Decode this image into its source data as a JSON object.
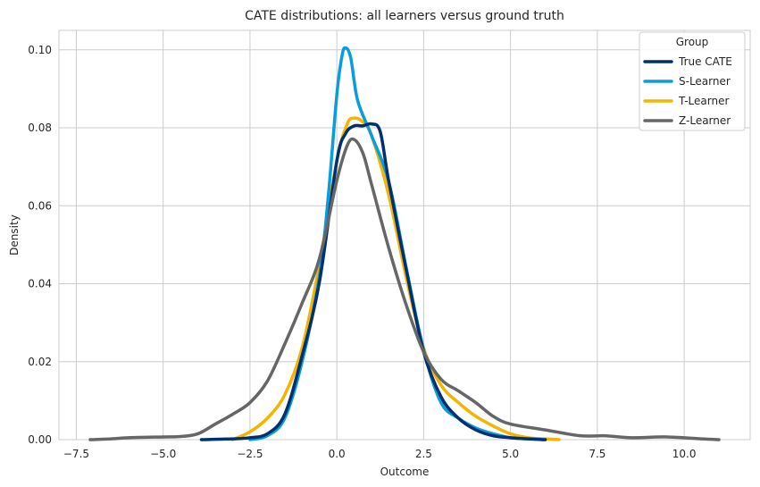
{
  "chart_data": {
    "type": "line",
    "title": "CATE distributions: all learners versus ground truth",
    "xlabel": "Outcome",
    "ylabel": "Density",
    "xlim": [
      -8.0,
      11.9
    ],
    "ylim": [
      0,
      0.105
    ],
    "xticks": [
      -7.5,
      -5.0,
      -2.5,
      0.0,
      2.5,
      5.0,
      7.5,
      10.0
    ],
    "xtick_labels": [
      "−7.5",
      "−5.0",
      "−2.5",
      "0.0",
      "2.5",
      "5.0",
      "7.5",
      "10.0"
    ],
    "yticks": [
      0.0,
      0.02,
      0.04,
      0.06,
      0.08,
      0.1
    ],
    "ytick_labels": [
      "0.00",
      "0.02",
      "0.04",
      "0.06",
      "0.08",
      "0.10"
    ],
    "grid": true,
    "legend": {
      "title": "Group",
      "placement": "top-right"
    },
    "series": [
      {
        "name": "True CATE",
        "color": "#00306f",
        "points": [
          [
            -3.9,
            0.0
          ],
          [
            -3.0,
            0.0002
          ],
          [
            -2.5,
            0.0005
          ],
          [
            -2.0,
            0.0015
          ],
          [
            -1.5,
            0.0065
          ],
          [
            -1.0,
            0.0215
          ],
          [
            -0.5,
            0.0405
          ],
          [
            0.0,
            0.0715
          ],
          [
            0.25,
            0.0785
          ],
          [
            0.5,
            0.0805
          ],
          [
            0.75,
            0.0805
          ],
          [
            1.0,
            0.081
          ],
          [
            1.25,
            0.079
          ],
          [
            1.5,
            0.066
          ],
          [
            2.0,
            0.0435
          ],
          [
            2.5,
            0.0225
          ],
          [
            3.0,
            0.011
          ],
          [
            3.5,
            0.0055
          ],
          [
            4.0,
            0.0025
          ],
          [
            4.5,
            0.001
          ],
          [
            5.0,
            0.0005
          ],
          [
            5.5,
            0.0002
          ],
          [
            6.0,
            0.0
          ]
        ]
      },
      {
        "name": "S-Learner",
        "color": "#0a9ddb",
        "points": [
          [
            -2.5,
            0.0
          ],
          [
            -2.0,
            0.001
          ],
          [
            -1.5,
            0.0055
          ],
          [
            -1.0,
            0.02
          ],
          [
            -0.5,
            0.042
          ],
          [
            -0.25,
            0.062
          ],
          [
            0.0,
            0.0885
          ],
          [
            0.15,
            0.0985
          ],
          [
            0.25,
            0.1005
          ],
          [
            0.4,
            0.098
          ],
          [
            0.6,
            0.087
          ],
          [
            1.0,
            0.078
          ],
          [
            1.5,
            0.066
          ],
          [
            2.0,
            0.044
          ],
          [
            2.5,
            0.023
          ],
          [
            3.0,
            0.0095
          ],
          [
            3.5,
            0.0055
          ],
          [
            4.0,
            0.003
          ],
          [
            4.5,
            0.0015
          ],
          [
            5.0,
            0.0005
          ],
          [
            5.5,
            0.0002
          ],
          [
            6.0,
            0.0
          ]
        ]
      },
      {
        "name": "T-Learner",
        "color": "#f4b400",
        "points": [
          [
            -3.0,
            0.0
          ],
          [
            -2.5,
            0.002
          ],
          [
            -2.0,
            0.0055
          ],
          [
            -1.5,
            0.0115
          ],
          [
            -1.0,
            0.0235
          ],
          [
            -0.5,
            0.045
          ],
          [
            0.0,
            0.0715
          ],
          [
            0.3,
            0.081
          ],
          [
            0.5,
            0.0825
          ],
          [
            0.75,
            0.0815
          ],
          [
            1.0,
            0.078
          ],
          [
            1.5,
            0.0625
          ],
          [
            2.0,
            0.0415
          ],
          [
            2.5,
            0.0235
          ],
          [
            3.0,
            0.014
          ],
          [
            3.5,
            0.0095
          ],
          [
            4.0,
            0.006
          ],
          [
            4.5,
            0.0035
          ],
          [
            5.0,
            0.0015
          ],
          [
            5.5,
            0.0005
          ],
          [
            6.0,
            0.0002
          ],
          [
            6.4,
            0.0
          ]
        ]
      },
      {
        "name": "Z-Learner",
        "color": "#666666",
        "points": [
          [
            -7.1,
            0.0
          ],
          [
            -6.5,
            0.0002
          ],
          [
            -6.0,
            0.0005
          ],
          [
            -5.0,
            0.0007
          ],
          [
            -4.5,
            0.0008
          ],
          [
            -4.0,
            0.0015
          ],
          [
            -3.5,
            0.004
          ],
          [
            -3.0,
            0.0065
          ],
          [
            -2.5,
            0.0095
          ],
          [
            -2.0,
            0.015
          ],
          [
            -1.5,
            0.0245
          ],
          [
            -1.0,
            0.035
          ],
          [
            -0.5,
            0.0465
          ],
          [
            0.0,
            0.0665
          ],
          [
            0.3,
            0.0755
          ],
          [
            0.5,
            0.077
          ],
          [
            0.75,
            0.0735
          ],
          [
            1.0,
            0.0655
          ],
          [
            1.5,
            0.049
          ],
          [
            2.0,
            0.0345
          ],
          [
            2.5,
            0.0225
          ],
          [
            3.0,
            0.0155
          ],
          [
            3.5,
            0.0125
          ],
          [
            4.0,
            0.0095
          ],
          [
            4.5,
            0.006
          ],
          [
            5.0,
            0.004
          ],
          [
            6.0,
            0.0025
          ],
          [
            7.0,
            0.001
          ],
          [
            7.7,
            0.001
          ],
          [
            8.5,
            0.0005
          ],
          [
            9.5,
            0.0007
          ],
          [
            10.5,
            0.0002
          ],
          [
            11.0,
            0.0
          ]
        ]
      }
    ]
  }
}
